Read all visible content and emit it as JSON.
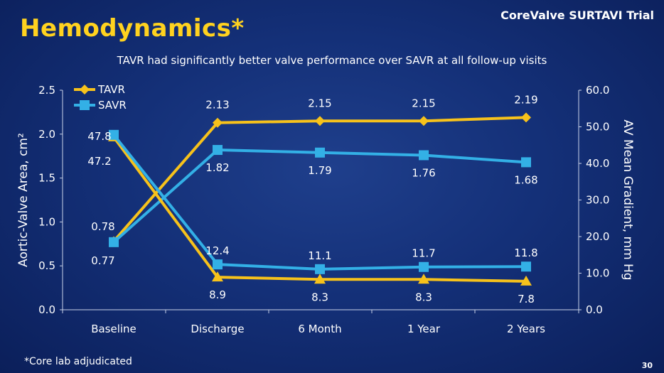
{
  "title": "Hemodynamics*",
  "brand": "CoreValve SURTAVI Trial",
  "subtitle": "TAVR had significantly better valve performance over SAVR at all follow-up visits",
  "footnote": "*Core lab adjudicated",
  "page_number": "30",
  "colors": {
    "tavr": "#f7c21b",
    "savr": "#33b0e6",
    "title": "#ffd21f"
  },
  "chart_data": {
    "type": "line",
    "categories": [
      "Baseline",
      "Discharge",
      "6 Month",
      "1 Year",
      "2 Years"
    ],
    "ylabel_left": "Aortic-Valve Area, cm²",
    "ylabel_right": "AV Mean Gradient, mm Hg",
    "ylim_left": [
      0,
      2.5
    ],
    "ylim_right": [
      0,
      60
    ],
    "yticks_left": [
      "0.0",
      "0.5",
      "1.0",
      "1.5",
      "2.0",
      "2.5"
    ],
    "yticks_right": [
      "0.0",
      "10.0",
      "20.0",
      "30.0",
      "40.0",
      "50.0",
      "60.0"
    ],
    "legend_position": "top-left",
    "series": [
      {
        "name": "TAVR",
        "metric": "area",
        "axis": "left",
        "marker": "diamond",
        "color": "#f7c21b",
        "values": [
          0.78,
          2.13,
          2.15,
          2.15,
          2.19
        ],
        "labels": [
          "0.78",
          "2.13",
          "2.15",
          "2.15",
          "2.19"
        ]
      },
      {
        "name": "SAVR",
        "metric": "area",
        "axis": "left",
        "marker": "square",
        "color": "#33b0e6",
        "values": [
          0.77,
          1.82,
          1.79,
          1.76,
          1.68
        ],
        "labels": [
          "0.77",
          "1.82",
          "1.79",
          "1.76",
          "1.68"
        ]
      },
      {
        "name": "TAVR",
        "metric": "gradient",
        "axis": "right",
        "marker": "triangle",
        "color": "#f7c21b",
        "values": [
          47.2,
          8.9,
          8.3,
          8.3,
          7.8
        ],
        "labels": [
          "47.2",
          "8.9",
          "8.3",
          "8.3",
          "7.8"
        ]
      },
      {
        "name": "SAVR",
        "metric": "gradient",
        "axis": "right",
        "marker": "square",
        "color": "#33b0e6",
        "values": [
          47.8,
          12.4,
          11.1,
          11.7,
          11.8
        ],
        "labels": [
          "47.8",
          "12.4",
          "11.1",
          "11.7",
          "11.8"
        ]
      }
    ],
    "legend": [
      {
        "name": "TAVR",
        "marker": "diamond",
        "color": "#f7c21b"
      },
      {
        "name": "SAVR",
        "marker": "square",
        "color": "#33b0e6"
      }
    ]
  }
}
